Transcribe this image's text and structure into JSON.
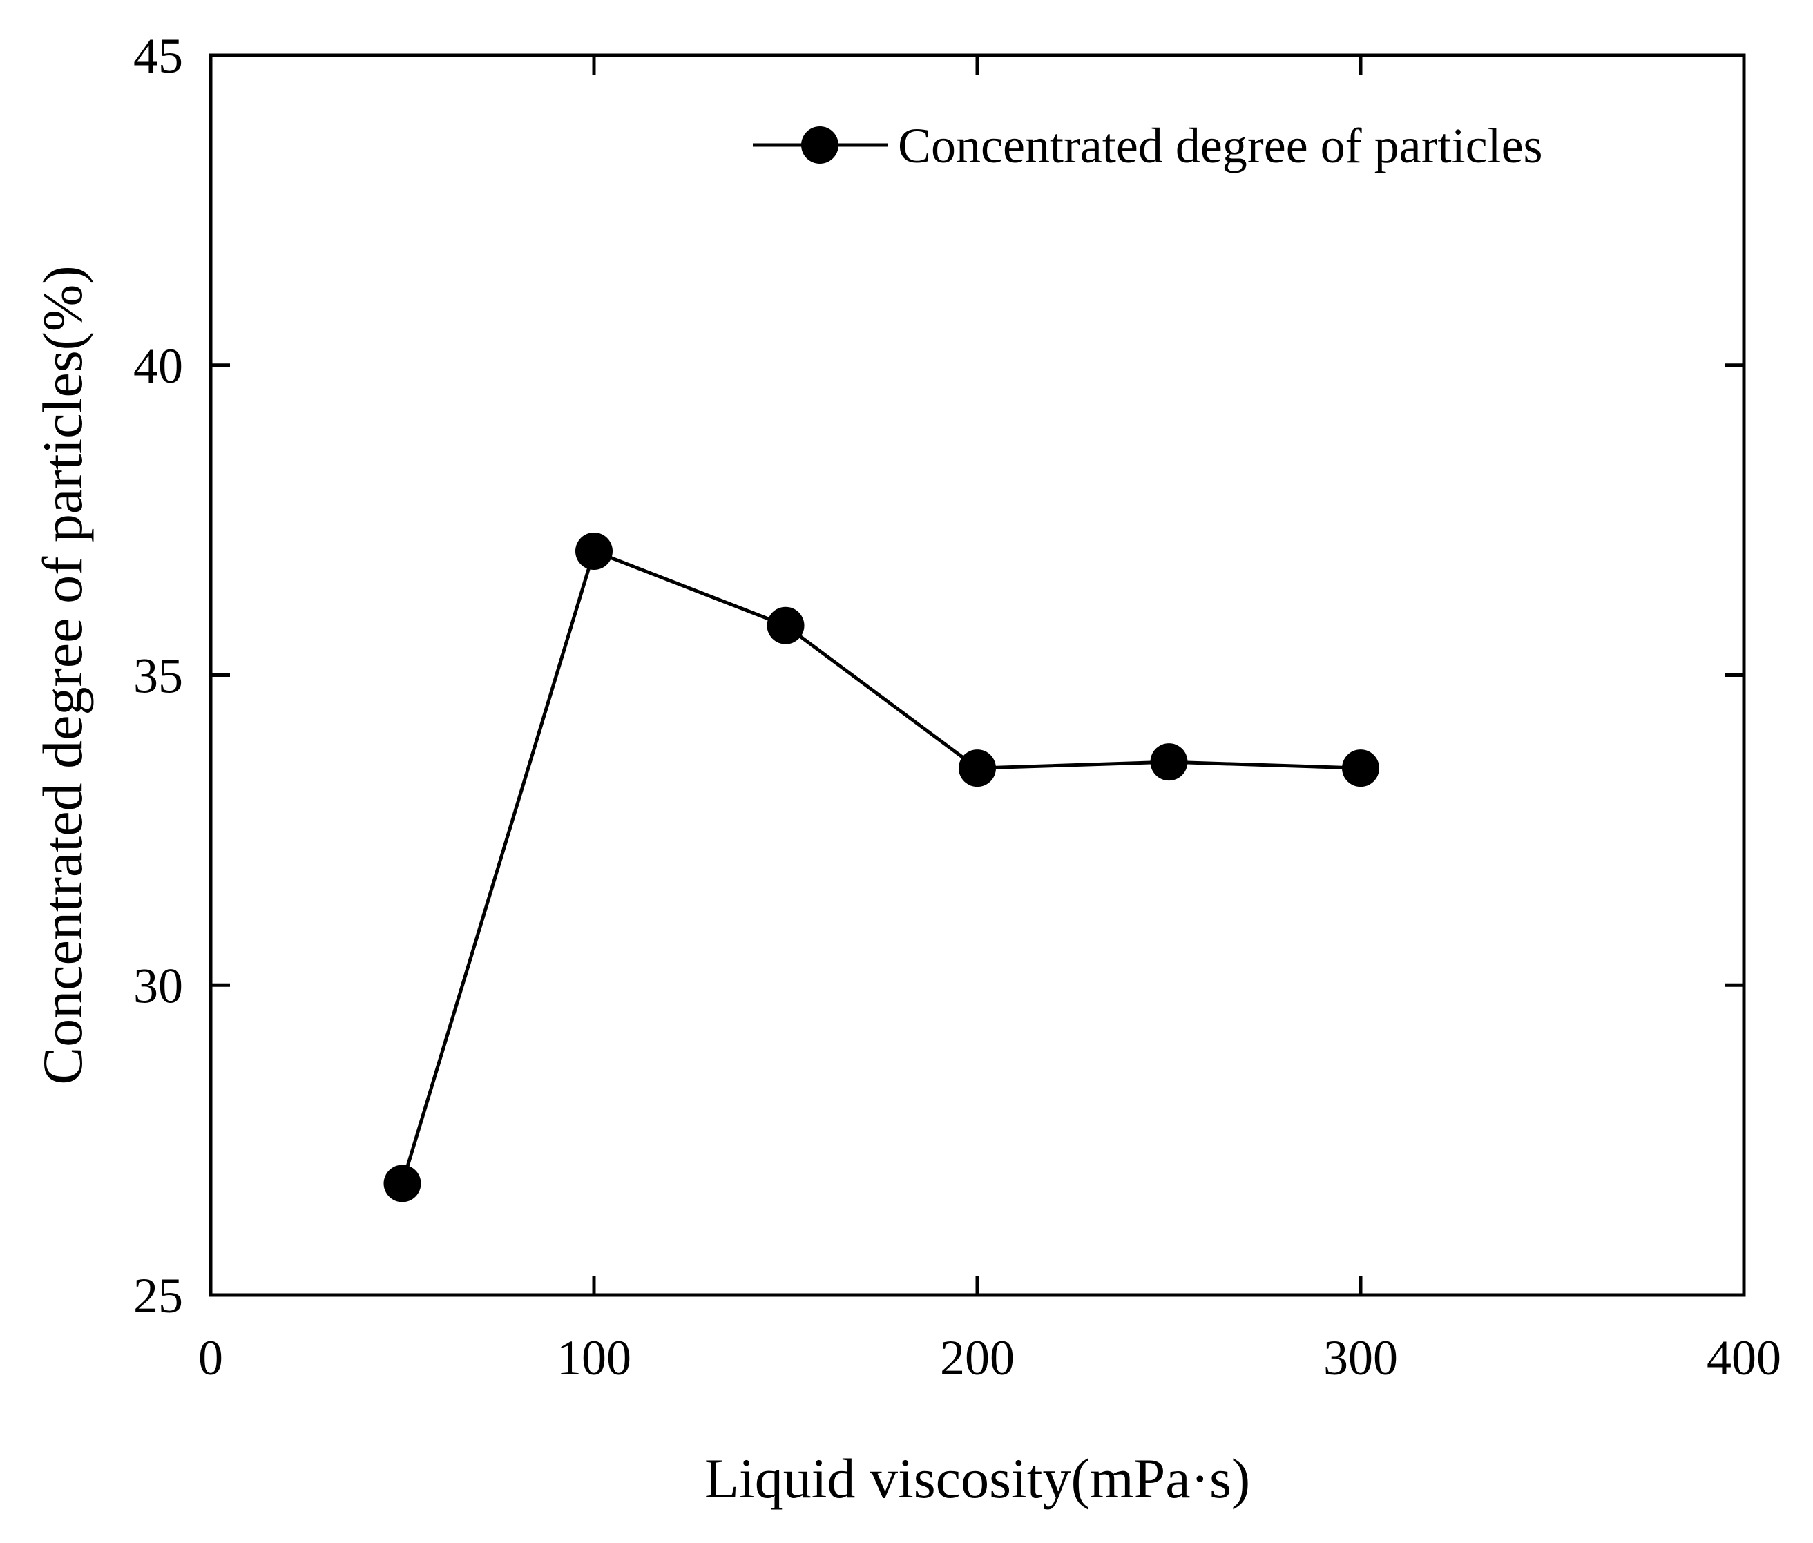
{
  "chart_data": {
    "type": "line",
    "title": "",
    "xlabel": "Liquid viscosity(mPa·s)",
    "ylabel": "Concentrated degree of particles(%)",
    "xlim": [
      0,
      400
    ],
    "ylim": [
      25,
      45
    ],
    "xticks": [
      0,
      100,
      200,
      300,
      400
    ],
    "yticks": [
      25,
      30,
      35,
      40,
      45
    ],
    "grid": false,
    "legend_position": "top-right",
    "series": [
      {
        "name": "Concentrated degree of particles",
        "marker": "circle",
        "color": "#000000",
        "x": [
          50,
          100,
          150,
          200,
          250,
          300
        ],
        "y": [
          26.8,
          37.0,
          35.8,
          33.5,
          33.6,
          33.5
        ]
      }
    ]
  }
}
